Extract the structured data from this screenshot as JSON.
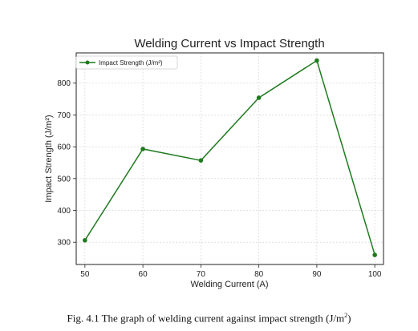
{
  "chart_data": {
    "type": "line",
    "title": "Welding Current vs Impact Strength",
    "xlabel": "Welding Current (A)",
    "ylabel": "Impact Strength (J/m²)",
    "x": [
      50,
      60,
      70,
      80,
      90,
      100
    ],
    "xticks": [
      "50",
      "60",
      "70",
      "80",
      "90",
      "100"
    ],
    "yticks": [
      300,
      400,
      500,
      600,
      700,
      800
    ],
    "xlim": [
      48.5,
      101.5
    ],
    "ylim": [
      230,
      895
    ],
    "grid": true,
    "legend_position": "top-left",
    "series": [
      {
        "name": "Impact Strength (J/m²)",
        "values": [
          306,
          593,
          557,
          754,
          871,
          260
        ],
        "color": "#1f7a1f",
        "marker": "circle"
      }
    ]
  },
  "caption": {
    "prefix": "Fig. 4.1 The graph of welding current against impact strength (J/m",
    "sup": "2",
    "suffix": ")"
  }
}
